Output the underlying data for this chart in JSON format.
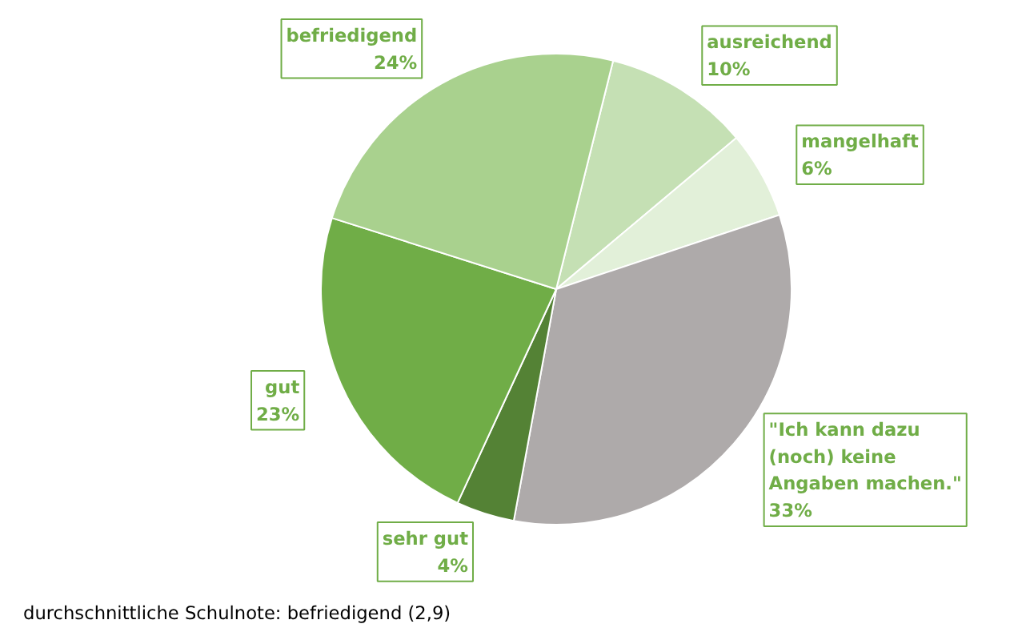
{
  "chart_data": {
    "type": "pie",
    "categories": [
      "ausreichend",
      "mangelhaft",
      "\"Ich kann dazu (noch) keine Angaben machen.\"",
      "sehr gut",
      "gut",
      "befriedigend"
    ],
    "values": [
      10,
      6,
      33,
      4,
      23,
      24
    ],
    "colors": [
      "#c5e0b4",
      "#e2f0d9",
      "#aeaaaa",
      "#548235",
      "#70ad47",
      "#a9d18e"
    ],
    "value_labels": [
      "10%",
      "6%",
      "33%",
      "4%",
      "23%",
      "24%"
    ],
    "annotations": [
      "durchschnittliche Schulnote: befriedigend (2,9)"
    ]
  }
}
